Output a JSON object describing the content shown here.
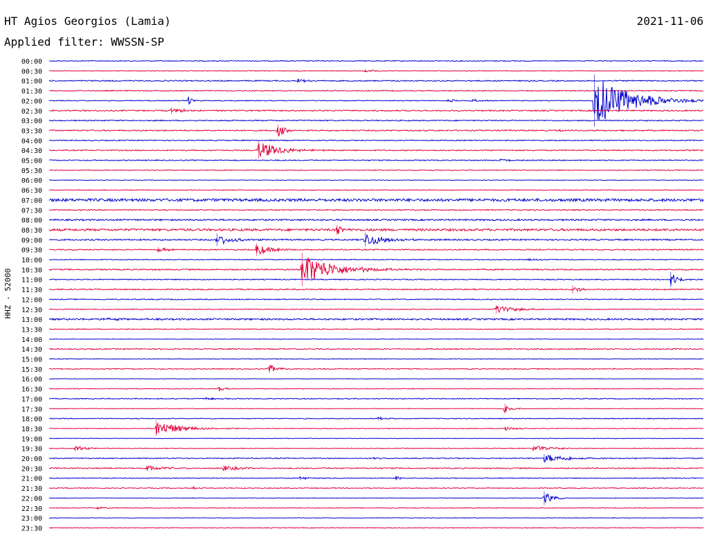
{
  "header": {
    "station": "HT Agios Georgios (Lamia)",
    "date": "2021-11-06",
    "filter": "Applied filter: WWSSN-SP"
  },
  "colors": {
    "even_trace": "#0000cc",
    "odd_trace": "#e0003a",
    "text": "#000000",
    "background": "#ffffff"
  },
  "chart_data": {
    "type": "line",
    "ylabel": "HHZ - 52000",
    "row_labels": [
      "00:00",
      "00:30",
      "01:00",
      "01:30",
      "02:00",
      "02:30",
      "03:00",
      "03:30",
      "04:00",
      "04:30",
      "05:00",
      "05:30",
      "06:00",
      "06:30",
      "07:00",
      "07:30",
      "08:00",
      "08:30",
      "09:00",
      "09:30",
      "10:00",
      "10:30",
      "11:00",
      "11:30",
      "12:00",
      "12:30",
      "13:00",
      "13:30",
      "14:00",
      "14:30",
      "15:00",
      "15:30",
      "16:00",
      "16:30",
      "17:00",
      "17:30",
      "18:00",
      "18:30",
      "19:00",
      "19:30",
      "20:00",
      "20:30",
      "21:00",
      "21:30",
      "22:00",
      "22:30",
      "23:00",
      "23:30"
    ],
    "row_minutes": 30,
    "noise_levels": [
      0.6,
      0.5,
      0.8,
      0.7,
      0.6,
      0.9,
      0.8,
      0.9,
      0.7,
      0.8,
      0.7,
      0.6,
      0.4,
      0.5,
      2.0,
      0.8,
      1.1,
      1.6,
      1.0,
      0.8,
      0.6,
      0.9,
      0.7,
      0.8,
      0.7,
      0.6,
      1.2,
      0.6,
      0.4,
      0.8,
      0.5,
      0.7,
      0.4,
      0.5,
      0.6,
      0.4,
      0.6,
      0.5,
      0.4,
      0.5,
      0.7,
      0.8,
      0.6,
      0.6,
      0.4,
      0.5,
      0.4,
      0.5
    ],
    "events": [
      {
        "row": 1,
        "minute": 14.5,
        "amplitude": 2,
        "duration": 0.8
      },
      {
        "row": 2,
        "minute": 11.4,
        "amplitude": 3,
        "duration": 0.6
      },
      {
        "row": 4,
        "minute": 6.4,
        "amplitude": 6,
        "duration": 0.3
      },
      {
        "row": 4,
        "minute": 18.3,
        "amplitude": 2,
        "duration": 1.0
      },
      {
        "row": 4,
        "minute": 19.4,
        "amplitude": 2,
        "duration": 0.8
      },
      {
        "row": 4,
        "minute": 25.0,
        "amplitude": 38,
        "duration": 2.5
      },
      {
        "row": 5,
        "minute": 5.6,
        "amplitude": 5,
        "duration": 0.8
      },
      {
        "row": 7,
        "minute": 10.5,
        "amplitude": 9,
        "duration": 0.5
      },
      {
        "row": 7,
        "minute": 23.4,
        "amplitude": 2,
        "duration": 0.6
      },
      {
        "row": 9,
        "minute": 9.6,
        "amplitude": 13,
        "duration": 1.6
      },
      {
        "row": 10,
        "minute": 20.7,
        "amplitude": 2,
        "duration": 1.0
      },
      {
        "row": 17,
        "minute": 13.2,
        "amplitude": 7,
        "duration": 0.5
      },
      {
        "row": 18,
        "minute": 7.7,
        "amplitude": 9,
        "duration": 1.0
      },
      {
        "row": 18,
        "minute": 14.5,
        "amplitude": 10,
        "duration": 1.5
      },
      {
        "row": 19,
        "minute": 5.0,
        "amplitude": 4,
        "duration": 0.6
      },
      {
        "row": 19,
        "minute": 9.5,
        "amplitude": 9,
        "duration": 1.0
      },
      {
        "row": 20,
        "minute": 22.0,
        "amplitude": 2,
        "duration": 0.8
      },
      {
        "row": 21,
        "minute": 11.6,
        "amplitude": 24,
        "duration": 2.2
      },
      {
        "row": 22,
        "minute": 28.5,
        "amplitude": 11,
        "duration": 0.5
      },
      {
        "row": 23,
        "minute": 24.0,
        "amplitude": 6,
        "duration": 0.5
      },
      {
        "row": 25,
        "minute": 20.5,
        "amplitude": 6,
        "duration": 1.4
      },
      {
        "row": 26,
        "minute": 2.5,
        "amplitude": 2,
        "duration": 0.8
      },
      {
        "row": 31,
        "minute": 10.1,
        "amplitude": 6,
        "duration": 0.8
      },
      {
        "row": 33,
        "minute": 7.8,
        "amplitude": 3,
        "duration": 0.5
      },
      {
        "row": 34,
        "minute": 7.2,
        "amplitude": 2,
        "duration": 1.0
      },
      {
        "row": 35,
        "minute": 20.9,
        "amplitude": 7,
        "duration": 0.5
      },
      {
        "row": 36,
        "minute": 15.1,
        "amplitude": 2,
        "duration": 0.8
      },
      {
        "row": 37,
        "minute": 4.9,
        "amplitude": 11,
        "duration": 1.8
      },
      {
        "row": 37,
        "minute": 20.9,
        "amplitude": 3,
        "duration": 1.0
      },
      {
        "row": 39,
        "minute": 1.2,
        "amplitude": 4,
        "duration": 0.8
      },
      {
        "row": 39,
        "minute": 22.2,
        "amplitude": 4,
        "duration": 1.3
      },
      {
        "row": 40,
        "minute": 22.7,
        "amplitude": 6,
        "duration": 2.0
      },
      {
        "row": 40,
        "minute": 14.9,
        "amplitude": 2,
        "duration": 0.6
      },
      {
        "row": 41,
        "minute": 4.5,
        "amplitude": 4,
        "duration": 1.2
      },
      {
        "row": 41,
        "minute": 8.0,
        "amplitude": 4,
        "duration": 1.2
      },
      {
        "row": 42,
        "minute": 11.5,
        "amplitude": 3,
        "duration": 0.6
      },
      {
        "row": 42,
        "minute": 15.9,
        "amplitude": 3,
        "duration": 0.3
      },
      {
        "row": 43,
        "minute": 6.6,
        "amplitude": 2,
        "duration": 1.0
      },
      {
        "row": 44,
        "minute": 22.7,
        "amplitude": 10,
        "duration": 0.6
      },
      {
        "row": 45,
        "minute": 2.2,
        "amplitude": 2,
        "duration": 0.6
      }
    ]
  }
}
